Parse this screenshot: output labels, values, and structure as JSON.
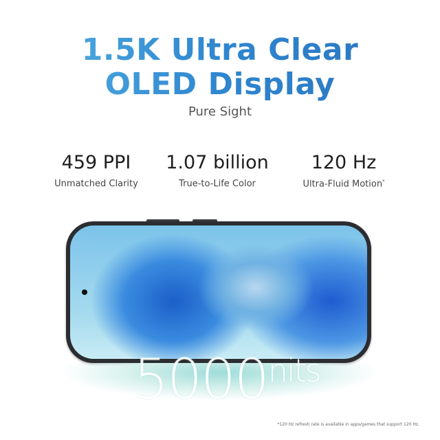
{
  "headline": {
    "line1": "1.5K Ultra Clear",
    "line2": "OLED Display"
  },
  "subtitle": "Pure Sight",
  "specs": [
    {
      "value": "459 PPI",
      "label": "Unmatched Clarity",
      "mark": ""
    },
    {
      "value": "1.07 billion",
      "label": "True-to-Life Color",
      "mark": ""
    },
    {
      "value": "120 Hz",
      "label": "Ultra-Fluid Motion",
      "mark": "*"
    }
  ],
  "brightness": {
    "value": "5000",
    "unit": "nits"
  },
  "footnote": "*120 Hz refresh rate is available in apps/games that support 120 Hz.",
  "colors": {
    "headline_start": "#56b4e6",
    "headline_end": "#2a73bd",
    "phone_frame": "#2b2d31"
  }
}
